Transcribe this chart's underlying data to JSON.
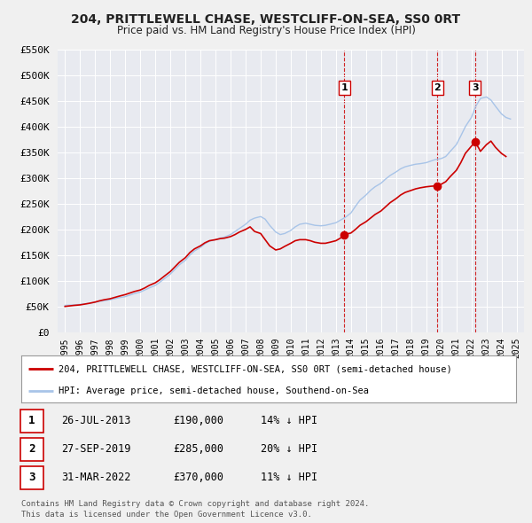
{
  "title": "204, PRITTLEWELL CHASE, WESTCLIFF-ON-SEA, SS0 0RT",
  "subtitle": "Price paid vs. HM Land Registry's House Price Index (HPI)",
  "background_color": "#f0f0f0",
  "plot_bg_color": "#e8eaf0",
  "grid_color": "#ffffff",
  "hpi_color": "#a8c4e8",
  "price_color": "#cc0000",
  "ylim": [
    0,
    550000
  ],
  "yticks": [
    0,
    50000,
    100000,
    150000,
    200000,
    250000,
    300000,
    350000,
    400000,
    450000,
    500000,
    550000
  ],
  "xlim_start": 1994.5,
  "xlim_end": 2025.5,
  "xticks": [
    1995,
    1996,
    1997,
    1998,
    1999,
    2000,
    2001,
    2002,
    2003,
    2004,
    2005,
    2006,
    2007,
    2008,
    2009,
    2010,
    2011,
    2012,
    2013,
    2014,
    2015,
    2016,
    2017,
    2018,
    2019,
    2020,
    2021,
    2022,
    2023,
    2024,
    2025
  ],
  "sale_points": [
    {
      "year": 2013.57,
      "price": 190000,
      "label": "1",
      "date": "26-JUL-2013",
      "hpi_diff": "14% ↓ HPI"
    },
    {
      "year": 2019.74,
      "price": 285000,
      "label": "2",
      "date": "27-SEP-2019",
      "hpi_diff": "20% ↓ HPI"
    },
    {
      "year": 2022.25,
      "price": 370000,
      "label": "3",
      "date": "31-MAR-2022",
      "hpi_diff": "11% ↓ HPI"
    }
  ],
  "legend_label_price": "204, PRITTLEWELL CHASE, WESTCLIFF-ON-SEA, SS0 0RT (semi-detached house)",
  "legend_label_hpi": "HPI: Average price, semi-detached house, Southend-on-Sea",
  "footnote": "Contains HM Land Registry data © Crown copyright and database right 2024.\nThis data is licensed under the Open Government Licence v3.0.",
  "hpi_data": [
    [
      1995.0,
      52000
    ],
    [
      1995.3,
      52500
    ],
    [
      1995.6,
      53000
    ],
    [
      1996.0,
      54000
    ],
    [
      1996.3,
      55000
    ],
    [
      1996.6,
      56000
    ],
    [
      1997.0,
      58000
    ],
    [
      1997.3,
      60000
    ],
    [
      1997.6,
      61000
    ],
    [
      1998.0,
      63000
    ],
    [
      1998.3,
      65000
    ],
    [
      1998.6,
      67000
    ],
    [
      1999.0,
      69000
    ],
    [
      1999.3,
      72000
    ],
    [
      1999.6,
      75000
    ],
    [
      2000.0,
      78000
    ],
    [
      2000.3,
      82000
    ],
    [
      2000.6,
      86000
    ],
    [
      2001.0,
      91000
    ],
    [
      2001.3,
      97000
    ],
    [
      2001.6,
      104000
    ],
    [
      2002.0,
      113000
    ],
    [
      2002.3,
      122000
    ],
    [
      2002.6,
      131000
    ],
    [
      2003.0,
      140000
    ],
    [
      2003.3,
      150000
    ],
    [
      2003.6,
      158000
    ],
    [
      2004.0,
      165000
    ],
    [
      2004.3,
      172000
    ],
    [
      2004.6,
      177000
    ],
    [
      2005.0,
      180000
    ],
    [
      2005.3,
      183000
    ],
    [
      2005.6,
      185000
    ],
    [
      2006.0,
      190000
    ],
    [
      2006.3,
      196000
    ],
    [
      2006.6,
      202000
    ],
    [
      2007.0,
      210000
    ],
    [
      2007.3,
      218000
    ],
    [
      2007.6,
      222000
    ],
    [
      2008.0,
      225000
    ],
    [
      2008.3,
      220000
    ],
    [
      2008.6,
      208000
    ],
    [
      2009.0,
      195000
    ],
    [
      2009.3,
      190000
    ],
    [
      2009.6,
      192000
    ],
    [
      2010.0,
      198000
    ],
    [
      2010.3,
      205000
    ],
    [
      2010.6,
      210000
    ],
    [
      2011.0,
      212000
    ],
    [
      2011.3,
      210000
    ],
    [
      2011.6,
      208000
    ],
    [
      2012.0,
      207000
    ],
    [
      2012.3,
      208000
    ],
    [
      2012.6,
      210000
    ],
    [
      2013.0,
      213000
    ],
    [
      2013.3,
      218000
    ],
    [
      2013.6,
      223000
    ],
    [
      2014.0,
      232000
    ],
    [
      2014.3,
      245000
    ],
    [
      2014.6,
      257000
    ],
    [
      2015.0,
      267000
    ],
    [
      2015.3,
      276000
    ],
    [
      2015.6,
      283000
    ],
    [
      2016.0,
      290000
    ],
    [
      2016.3,
      298000
    ],
    [
      2016.6,
      305000
    ],
    [
      2017.0,
      312000
    ],
    [
      2017.3,
      318000
    ],
    [
      2017.6,
      322000
    ],
    [
      2018.0,
      325000
    ],
    [
      2018.3,
      327000
    ],
    [
      2018.6,
      328000
    ],
    [
      2019.0,
      330000
    ],
    [
      2019.3,
      333000
    ],
    [
      2019.6,
      336000
    ],
    [
      2020.0,
      338000
    ],
    [
      2020.3,
      342000
    ],
    [
      2020.6,
      352000
    ],
    [
      2021.0,
      365000
    ],
    [
      2021.3,
      382000
    ],
    [
      2021.6,
      400000
    ],
    [
      2022.0,
      418000
    ],
    [
      2022.3,
      440000
    ],
    [
      2022.6,
      455000
    ],
    [
      2023.0,
      458000
    ],
    [
      2023.3,
      452000
    ],
    [
      2023.6,
      440000
    ],
    [
      2024.0,
      425000
    ],
    [
      2024.3,
      418000
    ],
    [
      2024.6,
      415000
    ]
  ],
  "price_data": [
    [
      1995.0,
      50000
    ],
    [
      1995.3,
      51000
    ],
    [
      1995.6,
      52000
    ],
    [
      1996.0,
      53000
    ],
    [
      1996.3,
      54500
    ],
    [
      1996.6,
      56000
    ],
    [
      1997.0,
      58500
    ],
    [
      1997.3,
      61000
    ],
    [
      1997.6,
      63000
    ],
    [
      1998.0,
      65000
    ],
    [
      1998.3,
      67500
    ],
    [
      1998.6,
      70000
    ],
    [
      1999.0,
      73000
    ],
    [
      1999.3,
      76000
    ],
    [
      1999.6,
      79000
    ],
    [
      2000.0,
      82000
    ],
    [
      2000.3,
      86000
    ],
    [
      2000.6,
      91000
    ],
    [
      2001.0,
      96000
    ],
    [
      2001.3,
      102000
    ],
    [
      2001.6,
      109000
    ],
    [
      2002.0,
      118000
    ],
    [
      2002.3,
      127000
    ],
    [
      2002.6,
      136000
    ],
    [
      2003.0,
      145000
    ],
    [
      2003.3,
      155000
    ],
    [
      2003.6,
      162000
    ],
    [
      2004.0,
      168000
    ],
    [
      2004.3,
      174000
    ],
    [
      2004.6,
      178000
    ],
    [
      2005.0,
      180000
    ],
    [
      2005.3,
      182000
    ],
    [
      2005.6,
      183000
    ],
    [
      2006.0,
      186000
    ],
    [
      2006.3,
      190000
    ],
    [
      2006.6,
      195000
    ],
    [
      2007.0,
      200000
    ],
    [
      2007.3,
      205000
    ],
    [
      2007.6,
      196000
    ],
    [
      2008.0,
      192000
    ],
    [
      2008.3,
      180000
    ],
    [
      2008.6,
      168000
    ],
    [
      2009.0,
      160000
    ],
    [
      2009.3,
      162000
    ],
    [
      2009.6,
      167000
    ],
    [
      2010.0,
      173000
    ],
    [
      2010.3,
      178000
    ],
    [
      2010.6,
      180000
    ],
    [
      2011.0,
      180000
    ],
    [
      2011.3,
      178000
    ],
    [
      2011.6,
      175000
    ],
    [
      2012.0,
      173000
    ],
    [
      2012.3,
      173000
    ],
    [
      2012.6,
      175000
    ],
    [
      2013.0,
      178000
    ],
    [
      2013.3,
      183000
    ],
    [
      2013.57,
      190000
    ],
    [
      2014.0,
      193000
    ],
    [
      2014.3,
      200000
    ],
    [
      2014.6,
      208000
    ],
    [
      2015.0,
      215000
    ],
    [
      2015.3,
      222000
    ],
    [
      2015.6,
      229000
    ],
    [
      2016.0,
      236000
    ],
    [
      2016.3,
      244000
    ],
    [
      2016.6,
      252000
    ],
    [
      2017.0,
      260000
    ],
    [
      2017.3,
      267000
    ],
    [
      2017.6,
      272000
    ],
    [
      2018.0,
      276000
    ],
    [
      2018.3,
      279000
    ],
    [
      2018.6,
      281000
    ],
    [
      2019.0,
      283000
    ],
    [
      2019.3,
      284000
    ],
    [
      2019.74,
      285000
    ],
    [
      2020.0,
      288000
    ],
    [
      2020.3,
      293000
    ],
    [
      2020.6,
      303000
    ],
    [
      2021.0,
      315000
    ],
    [
      2021.3,
      330000
    ],
    [
      2021.6,
      348000
    ],
    [
      2022.0,
      362000
    ],
    [
      2022.25,
      370000
    ],
    [
      2022.5,
      358000
    ],
    [
      2022.6,
      352000
    ],
    [
      2023.0,
      365000
    ],
    [
      2023.3,
      372000
    ],
    [
      2023.6,
      360000
    ],
    [
      2024.0,
      348000
    ],
    [
      2024.3,
      342000
    ]
  ]
}
